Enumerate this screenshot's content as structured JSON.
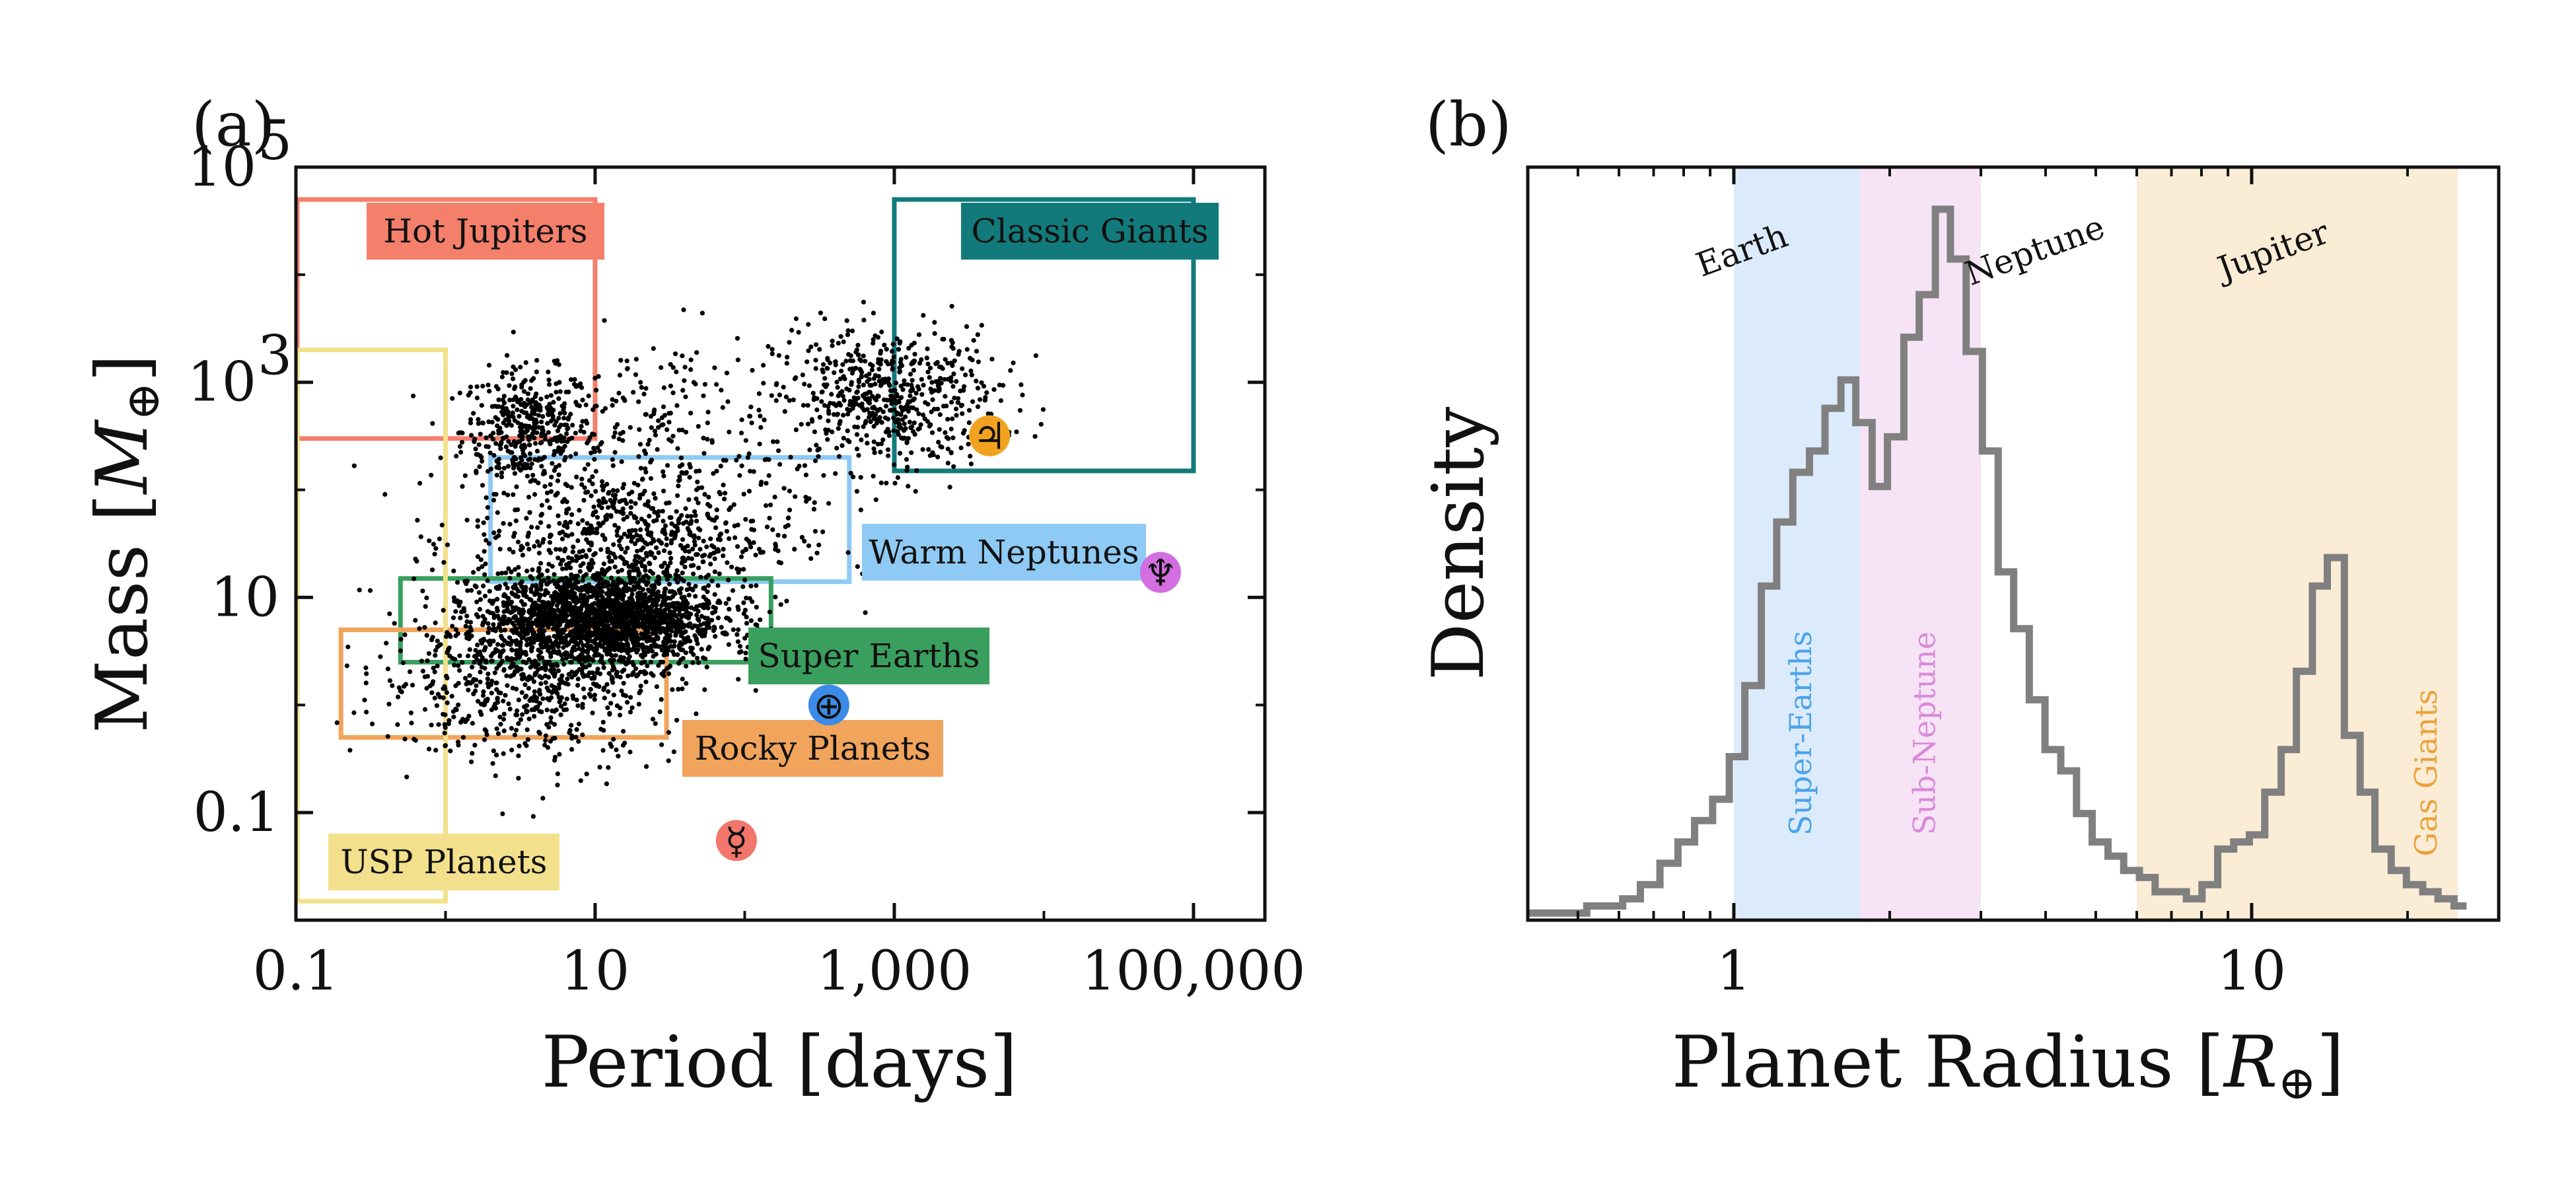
{
  "panels": {
    "a": {
      "label": "(a)",
      "xlabel": "Period [days]",
      "ylabel_main": "Mass [",
      "ylabel_sym": "M",
      "ylabel_sub": "⊕",
      "ylabel_close": "]"
    },
    "b": {
      "label": "(b)",
      "xlabel_main": "Planet Radius [",
      "xlabel_sym": "R",
      "xlabel_sub": "⊕",
      "xlabel_close": "]",
      "ylabel": "Density"
    }
  },
  "chart_data": [
    {
      "type": "scatter",
      "panel": "a",
      "title": "",
      "xlabel": "Period [days]",
      "ylabel": "Mass [M⊕]",
      "xscale": "log",
      "yscale": "log",
      "xlim": [
        0.1,
        300000
      ],
      "ylim": [
        0.01,
        100000
      ],
      "x_ticks": [
        {
          "value": 0.1,
          "label": "0.1"
        },
        {
          "value": 10,
          "label": "10"
        },
        {
          "value": 1000,
          "label": "1,000"
        },
        {
          "value": 100000,
          "label": "100,000"
        }
      ],
      "y_ticks": [
        {
          "value": 0.1,
          "label": "0.1"
        },
        {
          "value": 10,
          "label": "10"
        },
        {
          "value": 1000,
          "label": "10^3"
        },
        {
          "value": 100000,
          "label": "10^5"
        }
      ],
      "y_tick_display": [
        {
          "value": 0.1,
          "base": "0.1",
          "exp": ""
        },
        {
          "value": 10,
          "base": "10",
          "exp": ""
        },
        {
          "value": 1000,
          "base": "10",
          "exp": "3"
        },
        {
          "value": 100000,
          "base": "10",
          "exp": "5"
        }
      ],
      "point_clusters": [
        {
          "name": "hot-jupiter-cluster",
          "n": 420,
          "log_period_mean": 0.55,
          "log_period_sd": 0.22,
          "log_mass_mean": 2.55,
          "log_mass_sd": 0.28
        },
        {
          "name": "warm-giant-cluster",
          "n": 230,
          "log_period_mean": 1.45,
          "log_period_sd": 0.45,
          "log_mass_mean": 2.45,
          "log_mass_sd": 0.5
        },
        {
          "name": "classic-giant-cluster",
          "n": 620,
          "log_period_mean": 2.95,
          "log_period_sd": 0.38,
          "log_mass_mean": 2.85,
          "log_mass_sd": 0.33
        },
        {
          "name": "neptune-cluster",
          "n": 620,
          "log_period_mean": 1.25,
          "log_period_sd": 0.55,
          "log_mass_mean": 1.55,
          "log_mass_sd": 0.32
        },
        {
          "name": "super-earth-core",
          "n": 1900,
          "log_period_mean": 1.05,
          "log_period_sd": 0.4,
          "log_mass_mean": 0.8,
          "log_mass_sd": 0.22
        },
        {
          "name": "small-planet-cluster",
          "n": 700,
          "log_period_mean": 0.55,
          "log_period_sd": 0.5,
          "log_mass_mean": 0.25,
          "log_mass_sd": 0.38
        }
      ],
      "regions": [
        {
          "name": "Hot Jupiters",
          "period": [
            0.1,
            10
          ],
          "mass": [
            300,
            50000
          ],
          "color": "#f47f6b",
          "label_fill": "#f47f6b"
        },
        {
          "name": "Classic Giants",
          "period": [
            1000,
            100000
          ],
          "mass": [
            150,
            50000
          ],
          "color": "#137a7b",
          "label_fill": "#137a7b"
        },
        {
          "name": "Warm Neptunes",
          "period": [
            2,
            500
          ],
          "mass": [
            14,
            200
          ],
          "color": "#8ecaf4",
          "label_fill": "#8ecaf4"
        },
        {
          "name": "Super Earths",
          "period": [
            0.5,
            150
          ],
          "mass": [
            2.5,
            15
          ],
          "color": "#3a9f5e",
          "label_fill": "#3a9f5e"
        },
        {
          "name": "Rocky Planets",
          "period": [
            0.2,
            30
          ],
          "mass": [
            0.5,
            5
          ],
          "color": "#f1a45b",
          "label_fill": "#f1a45b"
        },
        {
          "name": "USP Planets",
          "period": [
            0.1,
            1
          ],
          "mass": [
            0.015,
            2000
          ],
          "color": "#f2e08c",
          "label_fill": "#f2e08c"
        }
      ],
      "solar_system": [
        {
          "name": "Jupiter",
          "symbol": "♃",
          "period": 4333,
          "mass": 318,
          "color": "#f2a21f"
        },
        {
          "name": "Neptune",
          "symbol": "♆",
          "period": 60190,
          "mass": 17.1,
          "color": "#d36ee0"
        },
        {
          "name": "Earth",
          "symbol": "⊕",
          "period": 365,
          "mass": 1.0,
          "color": "#3d8be8"
        },
        {
          "name": "Mercury",
          "symbol": "☿",
          "period": 88,
          "mass": 0.055,
          "color": "#f2766b"
        }
      ]
    },
    {
      "type": "line",
      "panel": "b",
      "title": "",
      "xlabel": "Planet Radius [R⊕]",
      "ylabel": "Density",
      "xscale": "log",
      "xlim": [
        0.4,
        30
      ],
      "ylim": [
        0,
        1.05
      ],
      "x_ticks": [
        {
          "value": 1,
          "label": "1"
        },
        {
          "value": 10,
          "label": "10"
        }
      ],
      "step_x": [
        0.4,
        0.44,
        0.48,
        0.52,
        0.56,
        0.61,
        0.66,
        0.72,
        0.78,
        0.84,
        0.91,
        0.98,
        1.05,
        1.13,
        1.21,
        1.3,
        1.4,
        1.5,
        1.61,
        1.72,
        1.85,
        1.98,
        2.13,
        2.28,
        2.45,
        2.62,
        2.81,
        3.02,
        3.24,
        3.47,
        3.72,
        3.99,
        4.28,
        4.59,
        4.92,
        5.28,
        5.66,
        6.07,
        6.51,
        6.98,
        7.48,
        8.02,
        8.6,
        9.23,
        9.9,
        10.6,
        11.4,
        12.2,
        13.1,
        14.0,
        15.1,
        16.2,
        17.3,
        18.6,
        19.9,
        21.4,
        22.9,
        24.6,
        26.0
      ],
      "step_density": [
        0.01,
        0.01,
        0.01,
        0.02,
        0.02,
        0.03,
        0.05,
        0.08,
        0.11,
        0.14,
        0.17,
        0.23,
        0.33,
        0.47,
        0.56,
        0.63,
        0.66,
        0.72,
        0.76,
        0.7,
        0.61,
        0.68,
        0.82,
        0.88,
        1.0,
        0.93,
        0.8,
        0.66,
        0.49,
        0.41,
        0.31,
        0.24,
        0.21,
        0.15,
        0.11,
        0.09,
        0.07,
        0.06,
        0.04,
        0.04,
        0.03,
        0.05,
        0.1,
        0.11,
        0.12,
        0.18,
        0.24,
        0.35,
        0.47,
        0.51,
        0.26,
        0.18,
        0.1,
        0.07,
        0.05,
        0.04,
        0.03,
        0.02
      ],
      "line_color": "#808080",
      "bands": [
        {
          "name": "Super-Earths",
          "x_range": [
            1.0,
            1.75
          ],
          "fill": "#dcebfb",
          "text_color": "#4aa3ea"
        },
        {
          "name": "Sub-Neptune",
          "x_range": [
            1.75,
            3.0
          ],
          "fill": "#f6e4f6",
          "text_color": "#da8ad8"
        },
        {
          "name": "Gas Giants",
          "x_range": [
            6.0,
            25.0
          ],
          "fill": "#fbecd6",
          "text_color": "#eaa23b"
        }
      ],
      "reference_labels": [
        {
          "text": "Earth",
          "x": 1.0
        },
        {
          "text": "Neptune",
          "x": 3.88
        },
        {
          "text": "Jupiter",
          "x": 11.2
        }
      ]
    }
  ]
}
